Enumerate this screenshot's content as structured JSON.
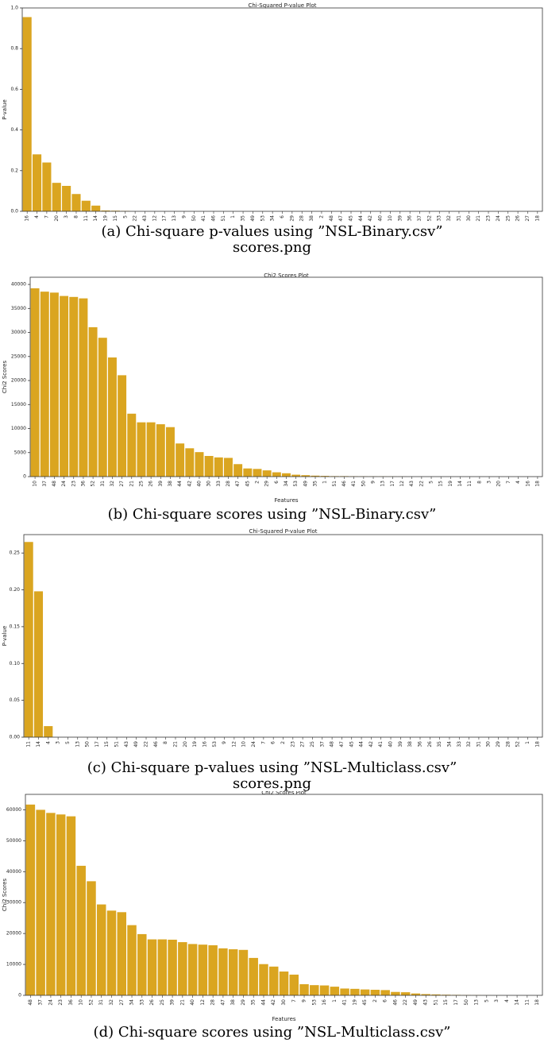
{
  "colors": {
    "bar": "#DAA520",
    "bar_edge": "#c18f14",
    "axis": "#333333",
    "text": "#222222"
  },
  "captions": {
    "a": [
      "(a) Chi-square p-values using ”NSL-Binary.csv”",
      "scores.png"
    ],
    "b": [
      "(b) Chi-square scores using ”NSL-Binary.csv”"
    ],
    "c": [
      "(c) Chi-square p-values using ”NSL-Multiclass.csv”",
      "scores.png"
    ],
    "d": [
      "(d) Chi-square scores using ”NSL-Multiclass.csv”"
    ]
  },
  "chart_data": [
    {
      "id": "a",
      "type": "bar",
      "title": "Chi-Squared P-value Plot",
      "xlabel": "",
      "ylabel": "P-value",
      "ylim": [
        0,
        1.0
      ],
      "yticks": [
        0.0,
        0.2,
        0.4,
        0.6,
        0.8,
        1.0
      ],
      "ytick_labels": [
        "0.0",
        "0.2",
        "0.4",
        "0.6",
        "0.8",
        "1.0"
      ],
      "categories": [
        "16",
        "4",
        "7",
        "20",
        "3",
        "8",
        "11",
        "14",
        "19",
        "15",
        "5",
        "22",
        "43",
        "12",
        "17",
        "13",
        "9",
        "50",
        "41",
        "46",
        "51",
        "1",
        "35",
        "49",
        "53",
        "34",
        "6",
        "29",
        "28",
        "38",
        "2",
        "48",
        "47",
        "45",
        "44",
        "42",
        "40",
        "10",
        "39",
        "36",
        "37",
        "52",
        "33",
        "32",
        "31",
        "30",
        "21",
        "23",
        "24",
        "25",
        "26",
        "27",
        "18"
      ],
      "values": [
        0.955,
        0.28,
        0.24,
        0.14,
        0.125,
        0.085,
        0.052,
        0.028,
        0.004,
        0.003,
        0.002,
        0,
        0,
        0,
        0,
        0,
        0,
        0,
        0,
        0,
        0,
        0,
        0,
        0,
        0,
        0,
        0,
        0,
        0,
        0,
        0,
        0,
        0,
        0,
        0,
        0,
        0,
        0,
        0,
        0,
        0,
        0,
        0,
        0,
        0,
        0,
        0,
        0,
        0,
        0,
        0,
        0,
        0
      ]
    },
    {
      "id": "b",
      "type": "bar",
      "title": "Chi2 Scores Plot",
      "xlabel": "Features",
      "ylabel": "Chi2 Scores",
      "ylim": [
        0,
        41500
      ],
      "yticks": [
        0,
        5000,
        10000,
        15000,
        20000,
        25000,
        30000,
        35000,
        40000
      ],
      "ytick_labels": [
        "0",
        "5000",
        "10000",
        "15000",
        "20000",
        "25000",
        "30000",
        "35000",
        "40000"
      ],
      "categories": [
        "10",
        "37",
        "48",
        "24",
        "23",
        "36",
        "52",
        "31",
        "32",
        "27",
        "21",
        "25",
        "26",
        "39",
        "38",
        "44",
        "42",
        "40",
        "30",
        "33",
        "28",
        "47",
        "45",
        "2",
        "29",
        "6",
        "34",
        "53",
        "49",
        "35",
        "1",
        "51",
        "46",
        "41",
        "50",
        "9",
        "13",
        "17",
        "12",
        "43",
        "22",
        "5",
        "15",
        "19",
        "14",
        "11",
        "8",
        "3",
        "20",
        "7",
        "4",
        "16",
        "18"
      ],
      "values": [
        39200,
        38500,
        38300,
        37600,
        37400,
        37100,
        31100,
        28900,
        24800,
        21100,
        13100,
        11300,
        11300,
        10900,
        10300,
        6900,
        5900,
        5100,
        4300,
        4000,
        3900,
        2600,
        1700,
        1600,
        1300,
        900,
        700,
        400,
        300,
        200,
        150,
        100,
        100,
        80,
        60,
        50,
        40,
        30,
        20,
        0,
        0,
        0,
        0,
        0,
        0,
        0,
        0,
        0,
        0,
        0,
        0,
        0,
        0
      ]
    },
    {
      "id": "c",
      "type": "bar",
      "title": "Chi-Squared P-value Plot",
      "xlabel": "",
      "ylabel": "P-value",
      "ylim": [
        0,
        0.275
      ],
      "yticks": [
        0.0,
        0.05,
        0.1,
        0.15,
        0.2,
        0.25
      ],
      "ytick_labels": [
        "0.00",
        "0.05",
        "0.10",
        "0.15",
        "0.20",
        "0.25"
      ],
      "categories": [
        "11",
        "14",
        "4",
        "3",
        "5",
        "13",
        "50",
        "17",
        "15",
        "51",
        "43",
        "49",
        "22",
        "46",
        "8",
        "21",
        "20",
        "19",
        "16",
        "53",
        "9",
        "12",
        "10",
        "24",
        "7",
        "6",
        "2",
        "23",
        "27",
        "25",
        "37",
        "48",
        "47",
        "45",
        "44",
        "42",
        "41",
        "40",
        "39",
        "38",
        "36",
        "26",
        "35",
        "34",
        "33",
        "32",
        "31",
        "30",
        "29",
        "28",
        "52",
        "1",
        "18"
      ],
      "values": [
        0.265,
        0.198,
        0.015,
        0,
        0,
        0,
        0,
        0,
        0,
        0,
        0,
        0,
        0,
        0,
        0,
        0,
        0,
        0,
        0,
        0,
        0,
        0,
        0,
        0,
        0,
        0,
        0,
        0,
        0,
        0,
        0,
        0,
        0,
        0,
        0,
        0,
        0,
        0,
        0,
        0,
        0,
        0,
        0,
        0,
        0,
        0,
        0,
        0,
        0,
        0,
        0,
        0,
        0
      ]
    },
    {
      "id": "d",
      "type": "bar",
      "title": "Chi2 Scores Plot",
      "xlabel": "Features",
      "ylabel": "Chi2 Scores",
      "ylim": [
        0,
        65000
      ],
      "yticks": [
        0,
        10000,
        20000,
        30000,
        40000,
        50000,
        60000
      ],
      "ytick_labels": [
        "0",
        "10000",
        "20000",
        "30000",
        "40000",
        "50000",
        "60000"
      ],
      "categories": [
        "48",
        "37",
        "24",
        "23",
        "36",
        "10",
        "52",
        "31",
        "32",
        "27",
        "34",
        "33",
        "26",
        "25",
        "39",
        "21",
        "40",
        "12",
        "28",
        "47",
        "38",
        "29",
        "35",
        "44",
        "42",
        "30",
        "7",
        "9",
        "53",
        "16",
        "1",
        "41",
        "19",
        "45",
        "2",
        "6",
        "46",
        "22",
        "49",
        "43",
        "51",
        "15",
        "17",
        "50",
        "13",
        "5",
        "3",
        "4",
        "14",
        "11",
        "18"
      ],
      "values": [
        61700,
        60000,
        59000,
        58500,
        57900,
        41900,
        36900,
        29400,
        27400,
        26900,
        22700,
        19800,
        18100,
        18100,
        18000,
        17200,
        16600,
        16400,
        16200,
        15200,
        14900,
        14700,
        12100,
        10100,
        9300,
        7700,
        6700,
        3600,
        3300,
        3200,
        2800,
        2200,
        2100,
        1900,
        1800,
        1700,
        1100,
        1000,
        600,
        400,
        300,
        200,
        150,
        100,
        60,
        30,
        20,
        10,
        5,
        0,
        0
      ]
    }
  ]
}
